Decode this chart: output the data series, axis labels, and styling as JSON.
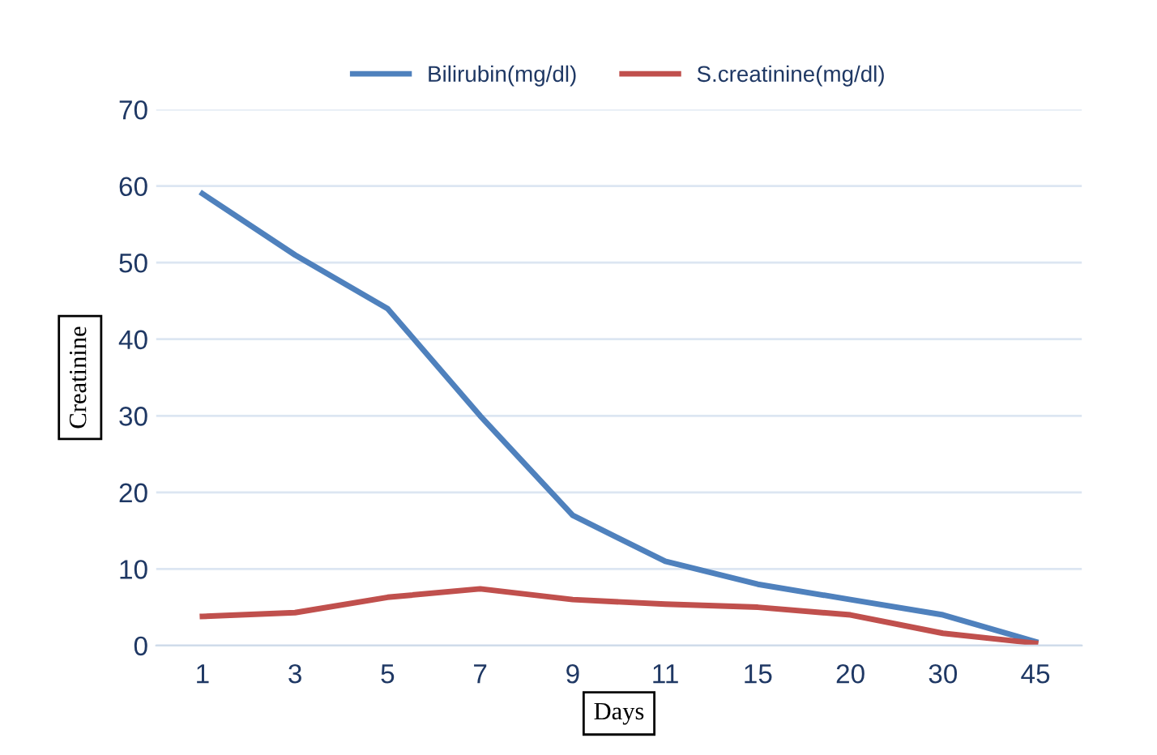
{
  "chart_data": {
    "type": "line",
    "xlabel": "Days",
    "ylabel": "Creatinine",
    "categories": [
      "1",
      "3",
      "5",
      "7",
      "9",
      "11",
      "15",
      "20",
      "30",
      "45"
    ],
    "series": [
      {
        "name": "Bilirubin(mg/dl)",
        "color": "#4f81bd",
        "values": [
          59,
          51,
          44,
          30,
          17,
          11,
          8,
          6,
          4,
          0.5
        ]
      },
      {
        "name": "S.creatinine(mg/dl)",
        "color": "#c0504d",
        "values": [
          3.8,
          4.3,
          6.3,
          7.4,
          6,
          5.4,
          5,
          4,
          1.6,
          0.3
        ]
      }
    ],
    "ylim": [
      0,
      70
    ],
    "yticks": [
      0,
      10,
      20,
      30,
      40,
      50,
      60,
      70
    ],
    "grid": "y",
    "legend": "top",
    "marker": "none",
    "line_style": "solid"
  }
}
